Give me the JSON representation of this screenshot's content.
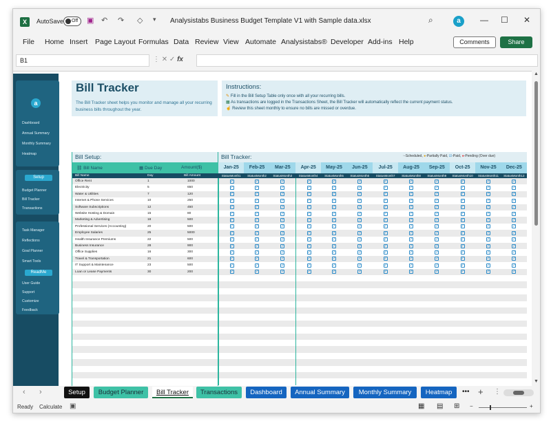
{
  "titlebar": {
    "autosave_label": "AutoSave",
    "autosave_state": "Off",
    "doc_title": "Analysistabs Business Budget Template V1 with Sample data.xlsx",
    "avatar_letter": "a"
  },
  "menu": [
    "File",
    "Home",
    "Insert",
    "Page Layout",
    "Formulas",
    "Data",
    "Review",
    "View",
    "Automate",
    "Analysistabs®",
    "Developer",
    "Add-ins",
    "Help"
  ],
  "buttons": {
    "comments": "Comments",
    "share": "Share"
  },
  "formula_bar": {
    "cell_ref": "B1",
    "value": ""
  },
  "sidebar": {
    "logo_letter": "a",
    "group1": [
      "Dashboard",
      "Annual Summary",
      "Monthly Summary",
      "Heatmap"
    ],
    "setup_button": "Setup",
    "group2": [
      "Budget Planner",
      "Bill Tracker",
      "Transactions"
    ],
    "group3": [
      "Task Manager",
      "Reflections",
      "Goal Planner",
      "Smart Tools"
    ],
    "readme_button": "ReadMe",
    "group4": [
      "User Guide",
      "Support",
      "Customize",
      "Feedback"
    ]
  },
  "header": {
    "title": "Bill Tracker",
    "description": "The Bill Tracker sheet helps you monitor and manage all your recurring business bills throughout the year."
  },
  "instructions": {
    "title": "Instructions:",
    "lines": [
      "Fill in the Bill Setup Table only once with all your recurring bills.",
      "As transactions are logged in the Transactions Sheet, the Bill Tracker will automatically reflect the current payment status.",
      "Review this sheet monthly to ensure no bills are missed or overdue."
    ]
  },
  "bill_setup": {
    "title": "Bill Setup:",
    "sub_headers": [
      "Bill Name",
      "Due Day",
      "Amount($)"
    ],
    "columns": [
      "Bill Name",
      "Day",
      "Bill Amount"
    ],
    "rows": [
      [
        "Office Rent",
        "1",
        "1000"
      ],
      [
        "Electricity",
        "5",
        "650"
      ],
      [
        "Water & Utilities",
        "7",
        "120"
      ],
      [
        "Internet & Phone Services",
        "10",
        "250"
      ],
      [
        "Software Subscriptions",
        "12",
        "450"
      ],
      [
        "Website Hosting & Domain",
        "15",
        "80"
      ],
      [
        "Marketing & Advertising",
        "18",
        "500"
      ],
      [
        "Professional Services (Accounting)",
        "20",
        "500"
      ],
      [
        "Employee Salaries",
        "25",
        "5000"
      ],
      [
        "Health Insurance Premiums",
        "22",
        "500"
      ],
      [
        "Business Insurance",
        "28",
        "900"
      ],
      [
        "Office Supplies",
        "16",
        "300"
      ],
      [
        "Travel & Transportation",
        "21",
        "600"
      ],
      [
        "IT Support & Maintenance",
        "23",
        "500"
      ],
      [
        "Loan or Lease Payments",
        "30",
        "200"
      ]
    ]
  },
  "bill_tracker": {
    "title": "Bill Tracker:",
    "legend": "-Scheduled, -Partially Paid, -Paid, -Pending (Over due)",
    "legend_items": [
      "-Scheduled,",
      "-Partially Paid,",
      "-Paid,",
      "-Pending (Over due)"
    ],
    "months": [
      "Jan-25",
      "Feb-25",
      "Mar-25",
      "Apr-25",
      "May-25",
      "Jun-25",
      "Jul-25",
      "Aug-25",
      "Sep-25",
      "Oct-25",
      "Nov-25",
      "Dec-25"
    ],
    "status_headers": [
      "StatusMonth1",
      "StatusMonth2",
      "StatusMonth3",
      "StatusMonth4",
      "StatusMonth5",
      "StatusMonth6",
      "StatusMonth7",
      "StatusMonth8",
      "StatusMonth9",
      "StatusMonth10",
      "StatusMonth11",
      "StatusMonth12"
    ],
    "status_glyph": "✓"
  },
  "sheet_tabs": [
    "Setup",
    "Budget Planner",
    "Bill Tracker",
    "Transactions",
    "Dashboard",
    "Annual Summary",
    "Monthly Summary",
    "Heatmap"
  ],
  "active_tab": "Bill Tracker",
  "statusbar": {
    "ready": "Ready",
    "calculate": "Calculate"
  },
  "colors": {
    "accent": "#174c63",
    "teal": "#3ec1a6",
    "excel_green": "#1e7145",
    "tab_blue": "#1565c0"
  }
}
